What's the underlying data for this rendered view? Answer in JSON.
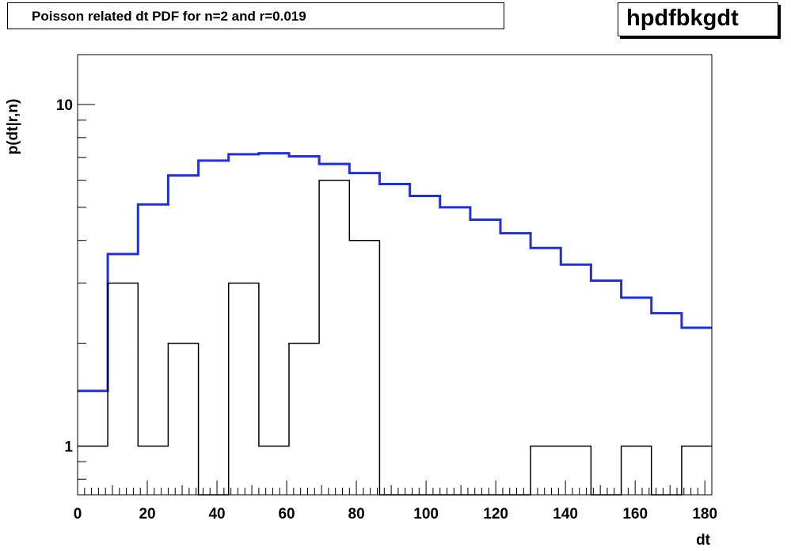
{
  "chart_data": {
    "type": "line",
    "title": "Poisson related dt PDF for n=2 and r=0.019",
    "stat_label": "hpdfbkgdt",
    "xlabel": "dt",
    "ylabel": "p(dt|r,n)",
    "xlim": [
      0,
      182
    ],
    "ylim": [
      0.72,
      14
    ],
    "y_scale": "log",
    "grid": false,
    "x_ticks": [
      0,
      20,
      40,
      60,
      80,
      100,
      120,
      140,
      160,
      180
    ],
    "y_ticks": [
      1,
      10
    ],
    "bin_edges": [
      0,
      8.666,
      17.333,
      26,
      34.666,
      43.333,
      52,
      60.666,
      69.333,
      78,
      86.666,
      95.333,
      104,
      112.666,
      121.333,
      130,
      138.666,
      147.333,
      156,
      164.666,
      173.333,
      182
    ],
    "series": [
      {
        "color": "#2030e0",
        "values": [
          1.45,
          3.65,
          5.1,
          6.2,
          6.85,
          7.15,
          7.2,
          7.05,
          6.7,
          6.3,
          5.85,
          5.4,
          5.0,
          4.6,
          4.2,
          3.8,
          3.4,
          3.05,
          2.72,
          2.45,
          2.22
        ]
      },
      {
        "color": "#000000",
        "values": [
          1,
          3,
          1,
          2,
          0,
          3,
          1,
          2,
          6,
          4,
          0,
          0,
          0,
          0,
          0,
          1,
          1,
          0,
          1,
          0,
          1
        ]
      }
    ]
  }
}
